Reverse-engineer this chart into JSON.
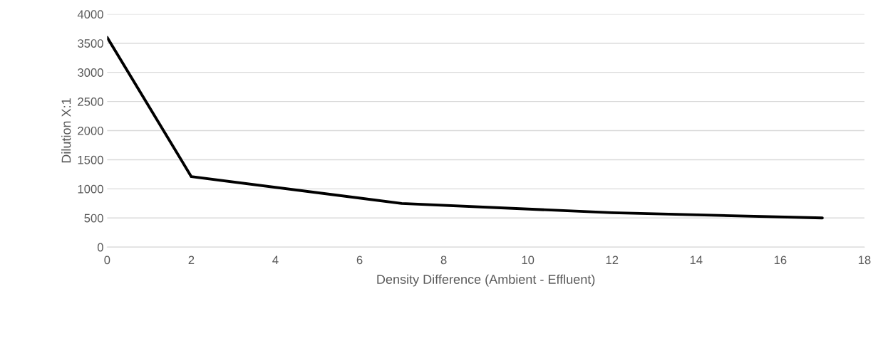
{
  "chart_data": {
    "type": "line",
    "xlabel": "Density Difference (Ambient - Effluent)",
    "ylabel": "Dilution X:1",
    "x": [
      0,
      2,
      7,
      12,
      17
    ],
    "series": [
      {
        "color": "#000000",
        "values": [
          3600,
          1210,
          750,
          590,
          500
        ]
      }
    ],
    "xlim": [
      0,
      18
    ],
    "xticks": [
      0,
      2,
      4,
      6,
      8,
      10,
      12,
      14,
      16,
      18
    ],
    "ylim": [
      0,
      4000
    ],
    "yticks": [
      0,
      500,
      1000,
      1500,
      2000,
      2500,
      3000,
      3500,
      4000
    ],
    "grid": "y",
    "legend": false,
    "marker": "none",
    "line_style": "solid"
  }
}
